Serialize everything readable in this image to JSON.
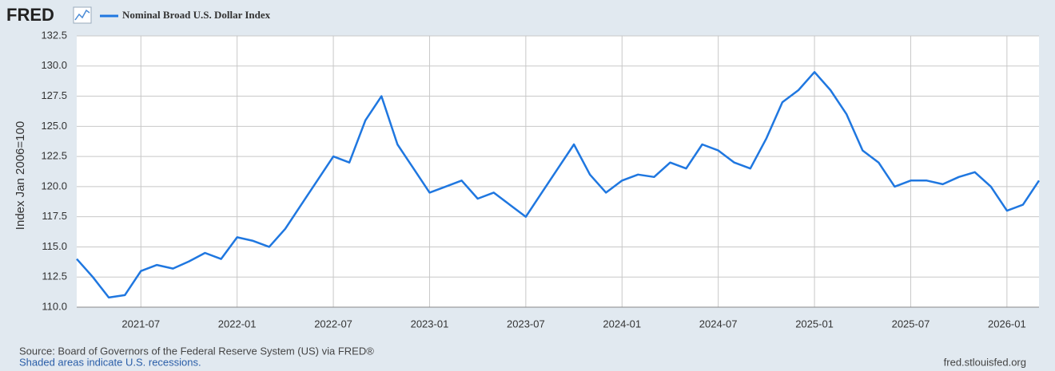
{
  "chart_data": {
    "type": "line",
    "logo": "FRED",
    "y_label": "Index Jan 2006=100",
    "source": "Source: Board of Governors of the Federal Reserve System (US) via FRED®",
    "note": "Shaded areas indicate U.S. recessions.",
    "site": "fred.stlouisfed.org",
    "x": [
      "2021-03",
      "2021-04",
      "2021-05",
      "2021-06",
      "2021-07",
      "2021-08",
      "2021-09",
      "2021-10",
      "2021-11",
      "2021-12",
      "2022-01",
      "2022-02",
      "2022-03",
      "2022-04",
      "2022-05",
      "2022-06",
      "2022-07",
      "2022-08",
      "2022-09",
      "2022-10",
      "2022-11",
      "2022-12",
      "2023-01",
      "2023-02",
      "2023-03",
      "2023-04",
      "2023-05",
      "2023-06",
      "2023-07",
      "2023-08",
      "2023-09",
      "2023-10",
      "2023-11",
      "2023-12",
      "2024-01",
      "2024-02",
      "2024-03",
      "2024-04",
      "2024-05",
      "2024-06",
      "2024-07",
      "2024-08",
      "2024-09",
      "2024-10",
      "2024-11",
      "2024-12",
      "2025-01",
      "2025-02",
      "2025-03",
      "2025-04",
      "2025-05",
      "2025-06",
      "2025-07",
      "2025-08",
      "2025-09",
      "2025-10",
      "2025-11",
      "2025-12",
      "2026-01",
      "2026-02",
      "2026-03"
    ],
    "series": [
      {
        "name": "Nominal Broad U.S. Dollar Index",
        "color": "#1f77e0",
        "values": [
          114.0,
          112.5,
          110.8,
          111.0,
          113.0,
          113.5,
          113.2,
          113.8,
          114.5,
          114.0,
          115.8,
          115.5,
          115.0,
          116.5,
          118.5,
          120.5,
          122.5,
          122.0,
          125.5,
          127.5,
          123.5,
          121.5,
          119.5,
          120.0,
          120.5,
          119.0,
          119.5,
          118.5,
          117.5,
          119.5,
          121.5,
          123.5,
          121.0,
          119.5,
          120.5,
          121.0,
          120.8,
          122.0,
          121.5,
          123.5,
          123.0,
          122.0,
          121.5,
          124.0,
          127.0,
          128.0,
          129.5,
          128.0,
          126.0,
          123.0,
          122.0,
          120.0,
          120.5,
          120.5,
          120.2,
          120.8,
          121.2,
          120.0,
          118.0,
          118.5,
          120.5
        ]
      }
    ],
    "xlim": [
      "2021-03",
      "2026-03"
    ],
    "xticks": [
      "2021-07",
      "2022-01",
      "2022-07",
      "2023-01",
      "2023-07",
      "2024-01",
      "2024-07",
      "2025-01",
      "2025-07",
      "2026-01"
    ],
    "ylim": [
      110,
      132.5
    ],
    "yticks": [
      {
        "value": 110,
        "label": "110.0"
      },
      112.5,
      {
        "value": 115,
        "label": "115.0"
      },
      117.5,
      {
        "value": 120,
        "label": "120.0"
      },
      122.5,
      {
        "value": 125,
        "label": "125.0"
      },
      127.5,
      {
        "value": 130,
        "label": "130.0"
      },
      132.5
    ],
    "grid": true
  }
}
